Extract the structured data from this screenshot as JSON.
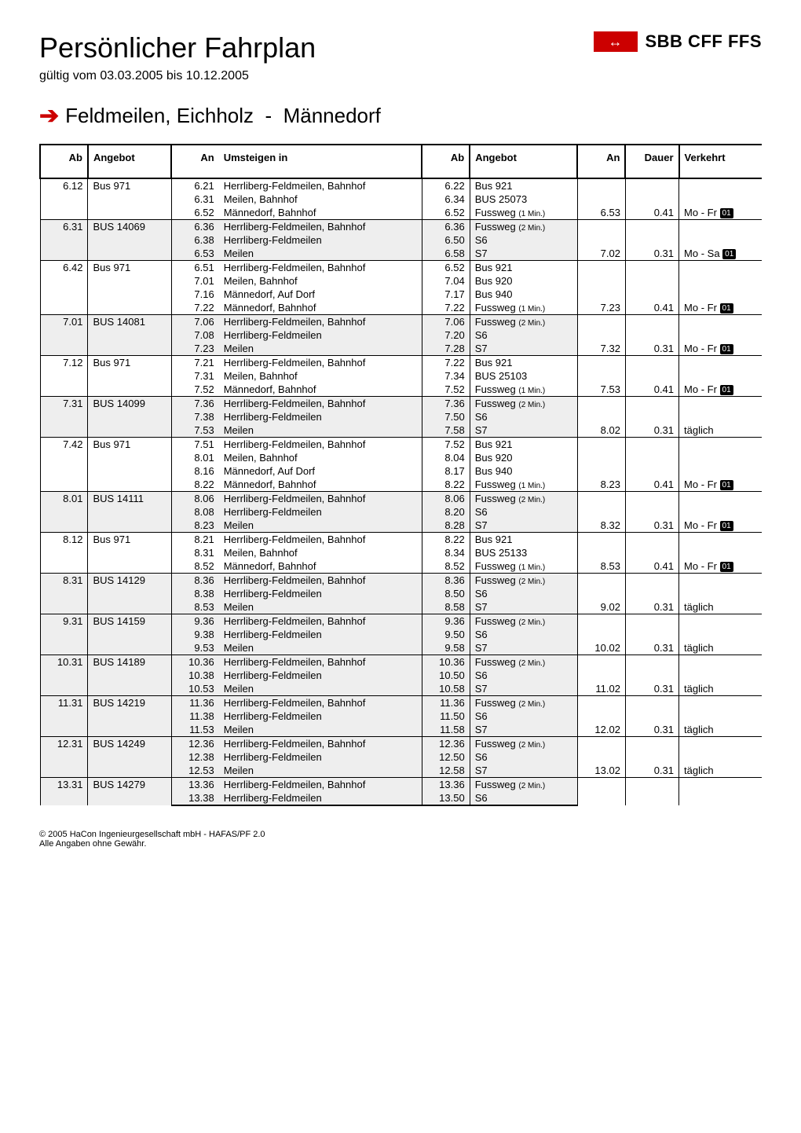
{
  "header": {
    "title": "Persönlicher Fahrplan",
    "validity": "gültig vom 03.03.2005 bis 10.12.2005",
    "brand_text": "SBB CFF FFS",
    "logo_glyph": "↔",
    "route_from": "Feldmeilen, Eichholz",
    "route_to": "Männedorf"
  },
  "columns": {
    "ab1": "Ab",
    "angebot1": "Angebot",
    "an1": "An",
    "umsteigen": "Umsteigen in",
    "ab2": "Ab",
    "angebot2": "Angebot",
    "an2": "An",
    "dauer": "Dauer",
    "verkehrt": "Verkehrt"
  },
  "footer": {
    "l1": "© 2005 HaCon Ingenieurgesellschaft mbH - HAFAS/PF 2.0",
    "l2": "Alle Angaben ohne Gewähr."
  },
  "groups": [
    {
      "shade": false,
      "ab1": "6.12",
      "angebot1": "Bus  971",
      "an2": "6.53",
      "dauer": "0.41",
      "verkehrt": "Mo - Fr",
      "fn": "01",
      "rows": [
        {
          "an1": "6.21",
          "um": "Herrliberg-Feldmeilen, Bahnhof",
          "ab2": "6.22",
          "angebot2": "Bus  921"
        },
        {
          "an1": "6.31",
          "um": "Meilen, Bahnhof",
          "ab2": "6.34",
          "angebot2": "BUS  25073"
        },
        {
          "an1": "6.52",
          "um": "Männedorf, Bahnhof",
          "ab2": "6.52",
          "angebot2": "Fussweg",
          "walk": "(1 Min.)"
        }
      ]
    },
    {
      "shade": true,
      "ab1": "6.31",
      "angebot1": "BUS  14069",
      "an2": "7.02",
      "dauer": "0.31",
      "verkehrt": "Mo - Sa",
      "fn": "01",
      "rows": [
        {
          "an1": "6.36",
          "um": "Herrliberg-Feldmeilen, Bahnhof",
          "ab2": "6.36",
          "angebot2": "Fussweg",
          "walk": "(2 Min.)"
        },
        {
          "an1": "6.38",
          "um": "Herrliberg-Feldmeilen",
          "ab2": "6.50",
          "angebot2": "S6"
        },
        {
          "an1": "6.53",
          "um": "Meilen",
          "ab2": "6.58",
          "angebot2": "S7"
        }
      ]
    },
    {
      "shade": false,
      "ab1": "6.42",
      "angebot1": "Bus  971",
      "an2": "7.23",
      "dauer": "0.41",
      "verkehrt": "Mo - Fr",
      "fn": "01",
      "rows": [
        {
          "an1": "6.51",
          "um": "Herrliberg-Feldmeilen, Bahnhof",
          "ab2": "6.52",
          "angebot2": "Bus  921"
        },
        {
          "an1": "7.01",
          "um": "Meilen, Bahnhof",
          "ab2": "7.04",
          "angebot2": "Bus  920"
        },
        {
          "an1": "7.16",
          "um": "Männedorf, Auf Dorf",
          "ab2": "7.17",
          "angebot2": "Bus  940"
        },
        {
          "an1": "7.22",
          "um": "Männedorf, Bahnhof",
          "ab2": "7.22",
          "angebot2": "Fussweg",
          "walk": "(1 Min.)"
        }
      ]
    },
    {
      "shade": true,
      "ab1": "7.01",
      "angebot1": "BUS  14081",
      "an2": "7.32",
      "dauer": "0.31",
      "verkehrt": "Mo - Fr",
      "fn": "01",
      "rows": [
        {
          "an1": "7.06",
          "um": "Herrliberg-Feldmeilen, Bahnhof",
          "ab2": "7.06",
          "angebot2": "Fussweg",
          "walk": "(2 Min.)"
        },
        {
          "an1": "7.08",
          "um": "Herrliberg-Feldmeilen",
          "ab2": "7.20",
          "angebot2": "S6"
        },
        {
          "an1": "7.23",
          "um": "Meilen",
          "ab2": "7.28",
          "angebot2": "S7"
        }
      ]
    },
    {
      "shade": false,
      "ab1": "7.12",
      "angebot1": "Bus  971",
      "an2": "7.53",
      "dauer": "0.41",
      "verkehrt": "Mo - Fr",
      "fn": "01",
      "rows": [
        {
          "an1": "7.21",
          "um": "Herrliberg-Feldmeilen, Bahnhof",
          "ab2": "7.22",
          "angebot2": "Bus  921"
        },
        {
          "an1": "7.31",
          "um": "Meilen, Bahnhof",
          "ab2": "7.34",
          "angebot2": "BUS  25103"
        },
        {
          "an1": "7.52",
          "um": "Männedorf, Bahnhof",
          "ab2": "7.52",
          "angebot2": "Fussweg",
          "walk": "(1 Min.)"
        }
      ]
    },
    {
      "shade": true,
      "ab1": "7.31",
      "angebot1": "BUS  14099",
      "an2": "8.02",
      "dauer": "0.31",
      "verkehrt": "täglich",
      "fn": "",
      "rows": [
        {
          "an1": "7.36",
          "um": "Herrliberg-Feldmeilen, Bahnhof",
          "ab2": "7.36",
          "angebot2": "Fussweg",
          "walk": "(2 Min.)"
        },
        {
          "an1": "7.38",
          "um": "Herrliberg-Feldmeilen",
          "ab2": "7.50",
          "angebot2": "S6"
        },
        {
          "an1": "7.53",
          "um": "Meilen",
          "ab2": "7.58",
          "angebot2": "S7"
        }
      ]
    },
    {
      "shade": false,
      "ab1": "7.42",
      "angebot1": "Bus  971",
      "an2": "8.23",
      "dauer": "0.41",
      "verkehrt": "Mo - Fr",
      "fn": "01",
      "rows": [
        {
          "an1": "7.51",
          "um": "Herrliberg-Feldmeilen, Bahnhof",
          "ab2": "7.52",
          "angebot2": "Bus  921"
        },
        {
          "an1": "8.01",
          "um": "Meilen, Bahnhof",
          "ab2": "8.04",
          "angebot2": "Bus  920"
        },
        {
          "an1": "8.16",
          "um": "Männedorf, Auf Dorf",
          "ab2": "8.17",
          "angebot2": "Bus  940"
        },
        {
          "an1": "8.22",
          "um": "Männedorf, Bahnhof",
          "ab2": "8.22",
          "angebot2": "Fussweg",
          "walk": "(1 Min.)"
        }
      ]
    },
    {
      "shade": true,
      "ab1": "8.01",
      "angebot1": "BUS  14111",
      "an2": "8.32",
      "dauer": "0.31",
      "verkehrt": "Mo - Fr",
      "fn": "01",
      "rows": [
        {
          "an1": "8.06",
          "um": "Herrliberg-Feldmeilen, Bahnhof",
          "ab2": "8.06",
          "angebot2": "Fussweg",
          "walk": "(2 Min.)"
        },
        {
          "an1": "8.08",
          "um": "Herrliberg-Feldmeilen",
          "ab2": "8.20",
          "angebot2": "S6"
        },
        {
          "an1": "8.23",
          "um": "Meilen",
          "ab2": "8.28",
          "angebot2": "S7"
        }
      ]
    },
    {
      "shade": false,
      "ab1": "8.12",
      "angebot1": "Bus  971",
      "an2": "8.53",
      "dauer": "0.41",
      "verkehrt": "Mo - Fr",
      "fn": "01",
      "rows": [
        {
          "an1": "8.21",
          "um": "Herrliberg-Feldmeilen, Bahnhof",
          "ab2": "8.22",
          "angebot2": "Bus  921"
        },
        {
          "an1": "8.31",
          "um": "Meilen, Bahnhof",
          "ab2": "8.34",
          "angebot2": "BUS  25133"
        },
        {
          "an1": "8.52",
          "um": "Männedorf, Bahnhof",
          "ab2": "8.52",
          "angebot2": "Fussweg",
          "walk": "(1 Min.)"
        }
      ]
    },
    {
      "shade": true,
      "ab1": "8.31",
      "angebot1": "BUS  14129",
      "an2": "9.02",
      "dauer": "0.31",
      "verkehrt": "täglich",
      "fn": "",
      "rows": [
        {
          "an1": "8.36",
          "um": "Herrliberg-Feldmeilen, Bahnhof",
          "ab2": "8.36",
          "angebot2": "Fussweg",
          "walk": "(2 Min.)"
        },
        {
          "an1": "8.38",
          "um": "Herrliberg-Feldmeilen",
          "ab2": "8.50",
          "angebot2": "S6"
        },
        {
          "an1": "8.53",
          "um": "Meilen",
          "ab2": "8.58",
          "angebot2": "S7"
        }
      ]
    },
    {
      "shade": true,
      "ab1": "9.31",
      "angebot1": "BUS  14159",
      "an2": "10.02",
      "dauer": "0.31",
      "verkehrt": "täglich",
      "fn": "",
      "rows": [
        {
          "an1": "9.36",
          "um": "Herrliberg-Feldmeilen, Bahnhof",
          "ab2": "9.36",
          "angebot2": "Fussweg",
          "walk": "(2 Min.)"
        },
        {
          "an1": "9.38",
          "um": "Herrliberg-Feldmeilen",
          "ab2": "9.50",
          "angebot2": "S6"
        },
        {
          "an1": "9.53",
          "um": "Meilen",
          "ab2": "9.58",
          "angebot2": "S7"
        }
      ]
    },
    {
      "shade": true,
      "ab1": "10.31",
      "angebot1": "BUS  14189",
      "an2": "11.02",
      "dauer": "0.31",
      "verkehrt": "täglich",
      "fn": "",
      "rows": [
        {
          "an1": "10.36",
          "um": "Herrliberg-Feldmeilen, Bahnhof",
          "ab2": "10.36",
          "angebot2": "Fussweg",
          "walk": "(2 Min.)"
        },
        {
          "an1": "10.38",
          "um": "Herrliberg-Feldmeilen",
          "ab2": "10.50",
          "angebot2": "S6"
        },
        {
          "an1": "10.53",
          "um": "Meilen",
          "ab2": "10.58",
          "angebot2": "S7"
        }
      ]
    },
    {
      "shade": true,
      "ab1": "11.31",
      "angebot1": "BUS  14219",
      "an2": "12.02",
      "dauer": "0.31",
      "verkehrt": "täglich",
      "fn": "",
      "rows": [
        {
          "an1": "11.36",
          "um": "Herrliberg-Feldmeilen, Bahnhof",
          "ab2": "11.36",
          "angebot2": "Fussweg",
          "walk": "(2 Min.)"
        },
        {
          "an1": "11.38",
          "um": "Herrliberg-Feldmeilen",
          "ab2": "11.50",
          "angebot2": "S6"
        },
        {
          "an1": "11.53",
          "um": "Meilen",
          "ab2": "11.58",
          "angebot2": "S7"
        }
      ]
    },
    {
      "shade": true,
      "ab1": "12.31",
      "angebot1": "BUS  14249",
      "an2": "13.02",
      "dauer": "0.31",
      "verkehrt": "täglich",
      "fn": "",
      "rows": [
        {
          "an1": "12.36",
          "um": "Herrliberg-Feldmeilen, Bahnhof",
          "ab2": "12.36",
          "angebot2": "Fussweg",
          "walk": "(2 Min.)"
        },
        {
          "an1": "12.38",
          "um": "Herrliberg-Feldmeilen",
          "ab2": "12.50",
          "angebot2": "S6"
        },
        {
          "an1": "12.53",
          "um": "Meilen",
          "ab2": "12.58",
          "angebot2": "S7"
        }
      ]
    },
    {
      "shade": true,
      "ab1": "13.31",
      "angebot1": "BUS  14279",
      "an2": "",
      "dauer": "",
      "verkehrt": "",
      "fn": "",
      "rows": [
        {
          "an1": "13.36",
          "um": "Herrliberg-Feldmeilen, Bahnhof",
          "ab2": "13.36",
          "angebot2": "Fussweg",
          "walk": "(2 Min.)"
        },
        {
          "an1": "13.38",
          "um": "Herrliberg-Feldmeilen",
          "ab2": "13.50",
          "angebot2": "S6"
        }
      ]
    }
  ]
}
